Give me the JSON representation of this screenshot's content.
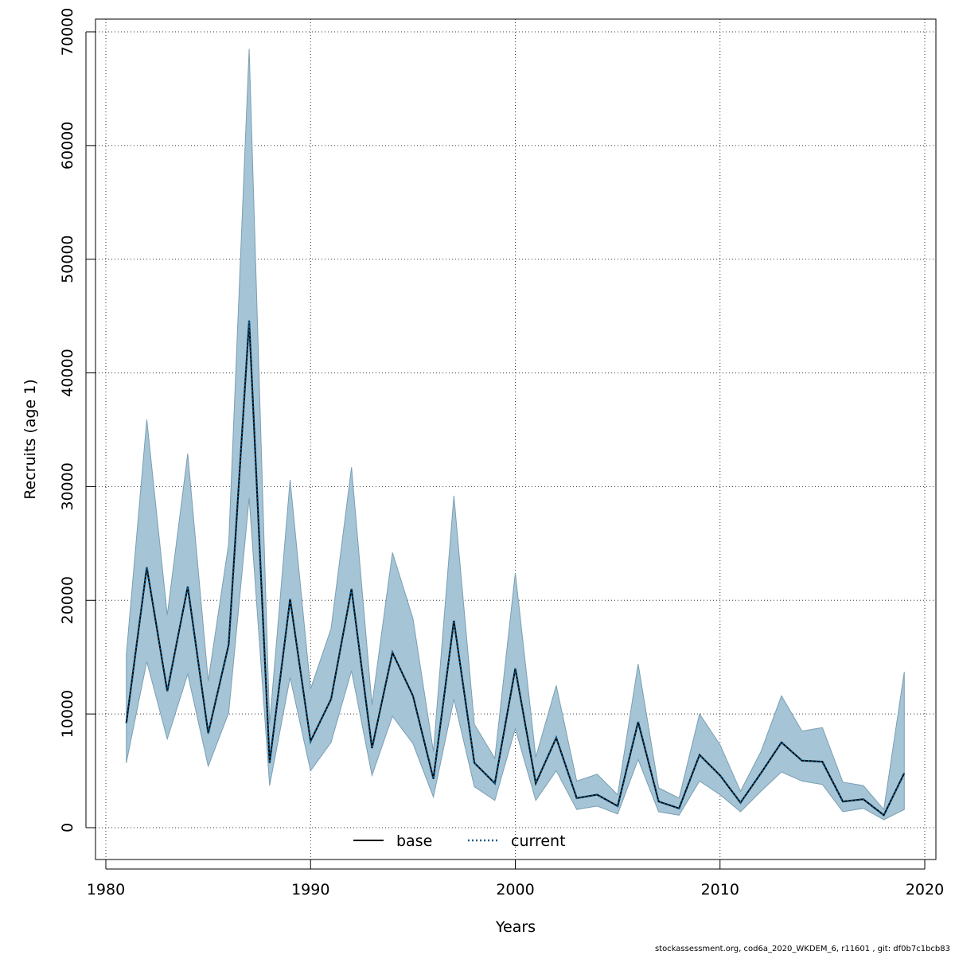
{
  "chart_data": {
    "type": "line",
    "xlabel": "Years",
    "ylabel": "Recruits (age 1)",
    "xlim": [
      1980,
      2020
    ],
    "ylim": [
      0,
      70000
    ],
    "x_ticks": [
      "1980",
      "1990",
      "2000",
      "2010",
      "2020"
    ],
    "y_ticks": [
      "0",
      "10000",
      "20000",
      "30000",
      "40000",
      "50000",
      "60000",
      "70000"
    ],
    "grid": true,
    "legend_position": "bottom-center",
    "series": [
      {
        "name": "base",
        "style": "solid",
        "color": "#000000",
        "x": [
          1981,
          1982,
          1983,
          1984,
          1985,
          1986,
          1987,
          1988,
          1989,
          1990,
          1991,
          1992,
          1993,
          1994,
          1995,
          1996,
          1997,
          1998,
          1999,
          2000,
          2001,
          2002,
          2003,
          2004,
          2005,
          2006,
          2007,
          2008,
          2009,
          2010,
          2011,
          2012,
          2013,
          2014,
          2015,
          2016,
          2017,
          2018,
          2019
        ],
        "values": [
          9200,
          22900,
          12000,
          21200,
          8300,
          16100,
          44600,
          5700,
          20100,
          7600,
          11300,
          21000,
          7000,
          15400,
          11600,
          4300,
          18200,
          5700,
          3900,
          14000,
          3900,
          7900,
          2600,
          2900,
          1900,
          9300,
          2300,
          1700,
          6400,
          4600,
          2200,
          4800,
          7500,
          5900,
          5800,
          2300,
          2500,
          1100,
          4800
        ]
      },
      {
        "name": "current",
        "style": "dotted",
        "color": "#0a5a8c",
        "x": [
          1981,
          1982,
          1983,
          1984,
          1985,
          1986,
          1987,
          1988,
          1989,
          1990,
          1991,
          1992,
          1993,
          1994,
          1995,
          1996,
          1997,
          1998,
          1999,
          2000,
          2001,
          2002,
          2003,
          2004,
          2005,
          2006,
          2007,
          2008,
          2009,
          2010,
          2011,
          2012,
          2013,
          2014,
          2015,
          2016,
          2017,
          2018,
          2019
        ],
        "values": [
          9200,
          22900,
          12000,
          21200,
          8300,
          16100,
          44600,
          5700,
          20100,
          7600,
          11300,
          21000,
          7000,
          15400,
          11600,
          4300,
          18200,
          5700,
          3900,
          14000,
          3900,
          7900,
          2600,
          2900,
          1900,
          9300,
          2300,
          1700,
          6400,
          4600,
          2200,
          4800,
          7500,
          5900,
          5800,
          2300,
          2500,
          1100,
          4800
        ]
      }
    ],
    "band": {
      "color": "#a5c4d5",
      "upper": [
        15200,
        35900,
        18700,
        32900,
        12900,
        25000,
        68500,
        9100,
        30600,
        12200,
        17500,
        31700,
        10800,
        24200,
        18400,
        6700,
        29200,
        9100,
        6100,
        22400,
        6200,
        12500,
        4100,
        4700,
        2900,
        14400,
        3500,
        2600,
        10000,
        7300,
        3200,
        6700,
        11600,
        8500,
        8800,
        4000,
        3700,
        1600,
        13700
      ],
      "lower": [
        5700,
        14600,
        7800,
        13500,
        5400,
        10100,
        29000,
        3700,
        13200,
        5000,
        7500,
        13800,
        4600,
        9800,
        7400,
        2700,
        11300,
        3600,
        2400,
        8700,
        2400,
        5000,
        1600,
        1900,
        1200,
        6000,
        1400,
        1100,
        4100,
        2900,
        1400,
        3200,
        4900,
        4100,
        3800,
        1400,
        1700,
        700,
        1600
      ]
    }
  },
  "legend": {
    "base_label": "base",
    "current_label": "current"
  },
  "footer": {
    "text": "stockassessment.org, cod6a_2020_WKDEM_6, r11601 , git: df0b7c1bcb83"
  },
  "colors": {
    "band_fill": "#a5c4d5",
    "band_stroke": "#7a9fb3",
    "current_line": "#0a5a8c"
  }
}
